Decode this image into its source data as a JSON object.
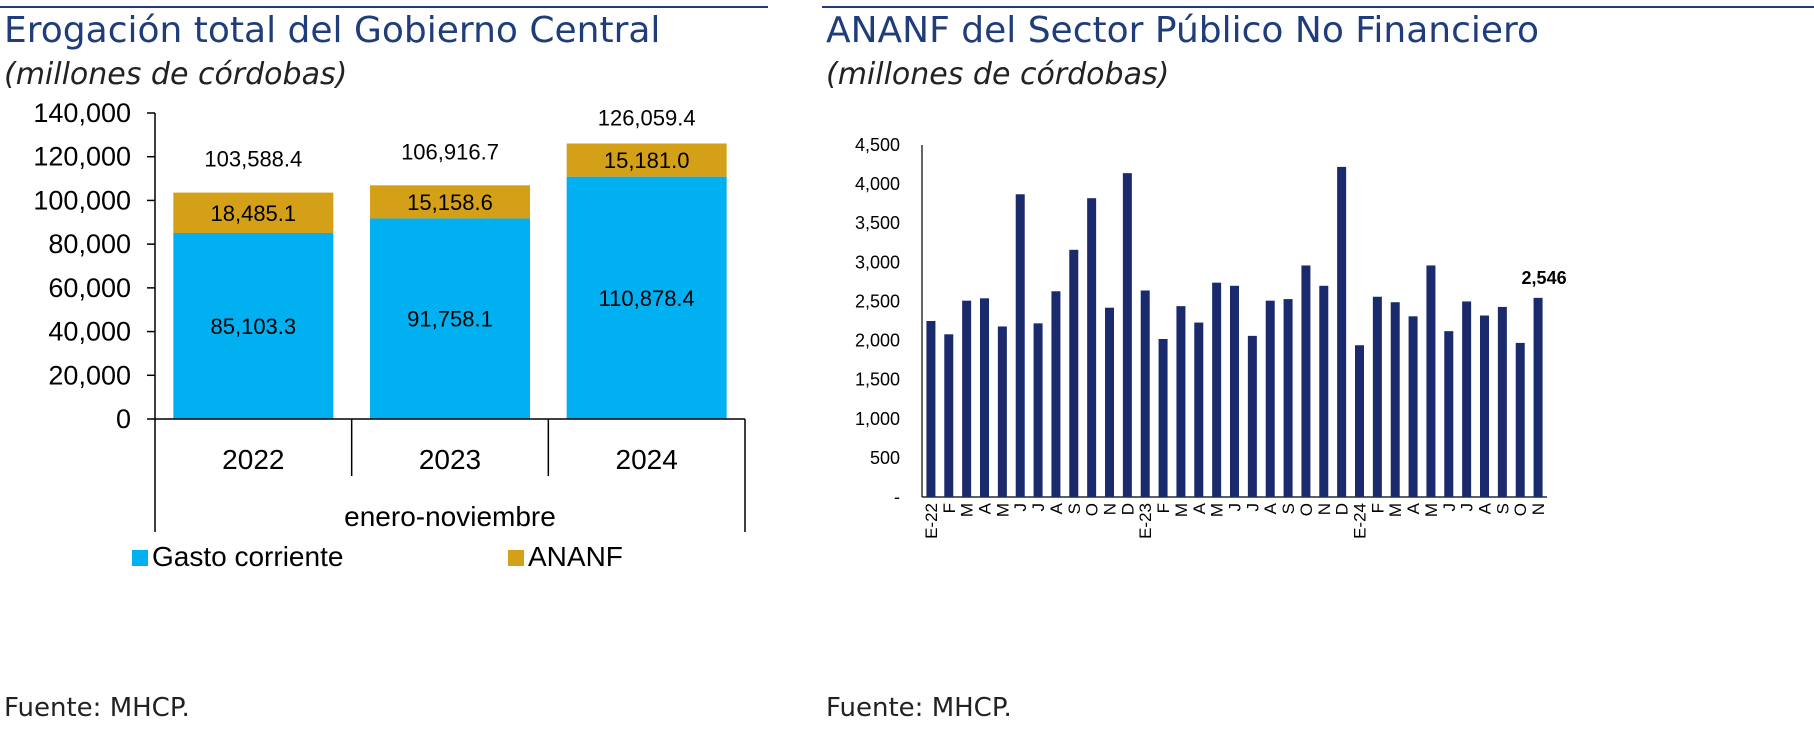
{
  "left": {
    "title": "Erogación total del Gobierno Central",
    "subtitle": "(millones de córdobas)",
    "source": "Fuente: MHCP."
  },
  "right": {
    "title": "ANANF del Sector Público No Financiero",
    "subtitle": "(millones de córdobas)",
    "source": "Fuente: MHCP."
  },
  "chart_data": [
    {
      "type": "bar",
      "stacked": true,
      "title": "Erogación total del Gobierno Central",
      "subtitle": "(millones de córdobas)",
      "categories": [
        "2022",
        "2023",
        "2024"
      ],
      "category_group_label": "enero-noviembre",
      "series": [
        {
          "name": "Gasto corriente",
          "values": [
            85103.3,
            91758.1,
            110878.4
          ],
          "labels": [
            "85,103.3",
            "91,758.1",
            "110,878.4"
          ],
          "color": "#00b0f0"
        },
        {
          "name": "ANANF",
          "values": [
            18485.1,
            15158.6,
            15181.0
          ],
          "labels": [
            "18,485.1",
            "15,158.6",
            "15,181.0"
          ],
          "color": "#d4a017"
        }
      ],
      "totals": [
        103588.4,
        106916.7,
        126059.4
      ],
      "total_labels": [
        "103,588.4",
        "106,916.7",
        "126,059.4"
      ],
      "ylim": [
        0,
        140000
      ],
      "yticks": [
        "0",
        "20,000",
        "40,000",
        "60,000",
        "80,000",
        "100,000",
        "120,000",
        "140,000"
      ],
      "legend_position": "bottom"
    },
    {
      "type": "bar",
      "title": "ANANF del Sector Público No Financiero",
      "subtitle": "(millones de córdobas)",
      "x": [
        "E-22",
        "F",
        "M",
        "A",
        "M",
        "J",
        "J",
        "A",
        "S",
        "O",
        "N",
        "D",
        "E-23",
        "F",
        "M",
        "A",
        "M",
        "J",
        "J",
        "A",
        "S",
        "O",
        "N",
        "D",
        "E-24",
        "F",
        "M",
        "A",
        "M",
        "J",
        "J",
        "A",
        "S",
        "O",
        "N"
      ],
      "values": [
        2250,
        2080,
        2510,
        2540,
        2180,
        3870,
        2220,
        2630,
        3160,
        3820,
        2420,
        4140,
        2640,
        2020,
        2440,
        2230,
        2740,
        2700,
        2060,
        2510,
        2530,
        2960,
        2700,
        4220,
        1940,
        2560,
        2490,
        2310,
        2960,
        2120,
        2500,
        2320,
        2430,
        1970,
        2546
      ],
      "last_value_label": "2,546",
      "ylim": [
        0,
        4500
      ],
      "yticks": [
        "-",
        "500",
        "1,000",
        "1,500",
        "2,000",
        "2,500",
        "3,000",
        "3,500",
        "4,000",
        "4,500"
      ],
      "color": "#1a2a6c",
      "grid": false
    }
  ]
}
